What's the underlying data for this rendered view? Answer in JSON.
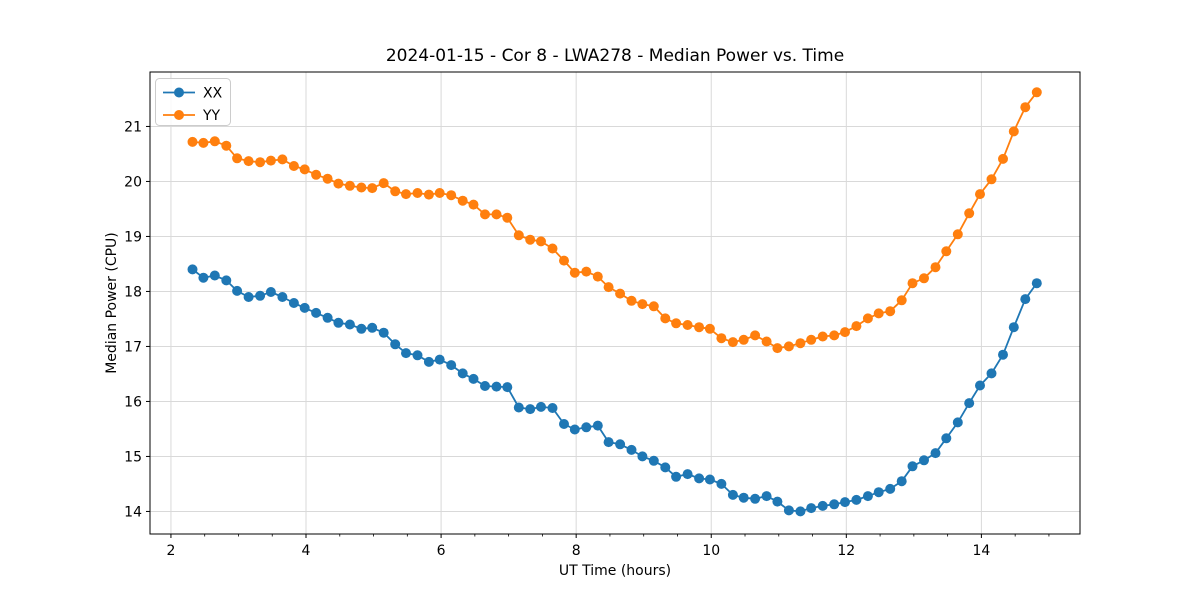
{
  "chart_data": {
    "type": "line",
    "title": "2024-01-15 - Cor 8 - LWA278 - Median Power vs. Time",
    "xlabel": "UT Time (hours)",
    "ylabel": "Median Power (CPU)",
    "xlim": [
      1.69,
      15.46
    ],
    "ylim": [
      13.59,
      21.99
    ],
    "x_ticks": [
      2,
      4,
      6,
      8,
      10,
      12,
      14
    ],
    "y_ticks": [
      14,
      15,
      16,
      17,
      18,
      19,
      20,
      21
    ],
    "x_minor_step": 0.5,
    "grid": true,
    "legend_position": "upper left",
    "colors": {
      "grid": "#d9d9d9",
      "spine": "#000000",
      "background": "#ffffff"
    },
    "x": [
      2.32,
      2.48,
      2.65,
      2.82,
      2.98,
      3.15,
      3.32,
      3.48,
      3.65,
      3.82,
      3.98,
      4.15,
      4.32,
      4.48,
      4.65,
      4.82,
      4.98,
      5.15,
      5.32,
      5.48,
      5.65,
      5.82,
      5.98,
      6.15,
      6.32,
      6.48,
      6.65,
      6.82,
      6.98,
      7.15,
      7.32,
      7.48,
      7.65,
      7.82,
      7.98,
      8.15,
      8.32,
      8.48,
      8.65,
      8.82,
      8.98,
      9.15,
      9.32,
      9.48,
      9.65,
      9.82,
      9.98,
      10.15,
      10.32,
      10.48,
      10.65,
      10.82,
      10.98,
      11.15,
      11.32,
      11.48,
      11.65,
      11.82,
      11.98,
      12.15,
      12.32,
      12.48,
      12.65,
      12.82,
      12.98,
      13.15,
      13.32,
      13.48,
      13.65,
      13.82,
      13.98,
      14.15,
      14.32,
      14.48,
      14.65,
      14.82
    ],
    "series": [
      {
        "name": "XX",
        "color": "#1f77b4",
        "values": [
          18.4,
          18.25,
          18.29,
          18.2,
          18.01,
          17.9,
          17.92,
          17.99,
          17.9,
          17.79,
          17.7,
          17.61,
          17.52,
          17.43,
          17.4,
          17.32,
          17.34,
          17.25,
          17.04,
          16.88,
          16.84,
          16.72,
          16.76,
          16.66,
          16.51,
          16.41,
          16.28,
          16.27,
          16.26,
          15.89,
          15.86,
          15.9,
          15.88,
          15.59,
          15.49,
          15.53,
          15.56,
          15.26,
          15.22,
          15.12,
          15.0,
          14.92,
          14.8,
          14.63,
          14.68,
          14.6,
          14.58,
          14.5,
          14.3,
          14.25,
          14.23,
          14.28,
          14.18,
          14.02,
          14.0,
          14.06,
          14.1,
          14.13,
          14.17,
          14.21,
          14.28,
          14.35,
          14.41,
          14.55,
          14.82,
          14.93,
          15.06,
          15.33,
          15.62,
          15.97,
          16.29,
          16.51,
          16.85,
          17.35,
          17.86,
          18.15
        ]
      },
      {
        "name": "YY",
        "color": "#ff7f0e",
        "values": [
          20.72,
          20.7,
          20.73,
          20.65,
          20.42,
          20.37,
          20.35,
          20.38,
          20.4,
          20.28,
          20.22,
          20.12,
          20.05,
          19.96,
          19.92,
          19.89,
          19.88,
          19.97,
          19.82,
          19.77,
          19.79,
          19.76,
          19.79,
          19.75,
          19.65,
          19.58,
          19.4,
          19.4,
          19.34,
          19.02,
          18.94,
          18.91,
          18.78,
          18.56,
          18.34,
          18.36,
          18.27,
          18.08,
          17.96,
          17.83,
          17.77,
          17.73,
          17.51,
          17.42,
          17.39,
          17.35,
          17.32,
          17.15,
          17.08,
          17.12,
          17.2,
          17.09,
          16.97,
          17.0,
          17.06,
          17.12,
          17.18,
          17.2,
          17.26,
          17.37,
          17.51,
          17.6,
          17.64,
          17.84,
          18.15,
          18.24,
          18.44,
          18.73,
          19.04,
          19.42,
          19.77,
          20.04,
          20.41,
          20.91,
          21.35,
          21.62
        ]
      }
    ]
  }
}
